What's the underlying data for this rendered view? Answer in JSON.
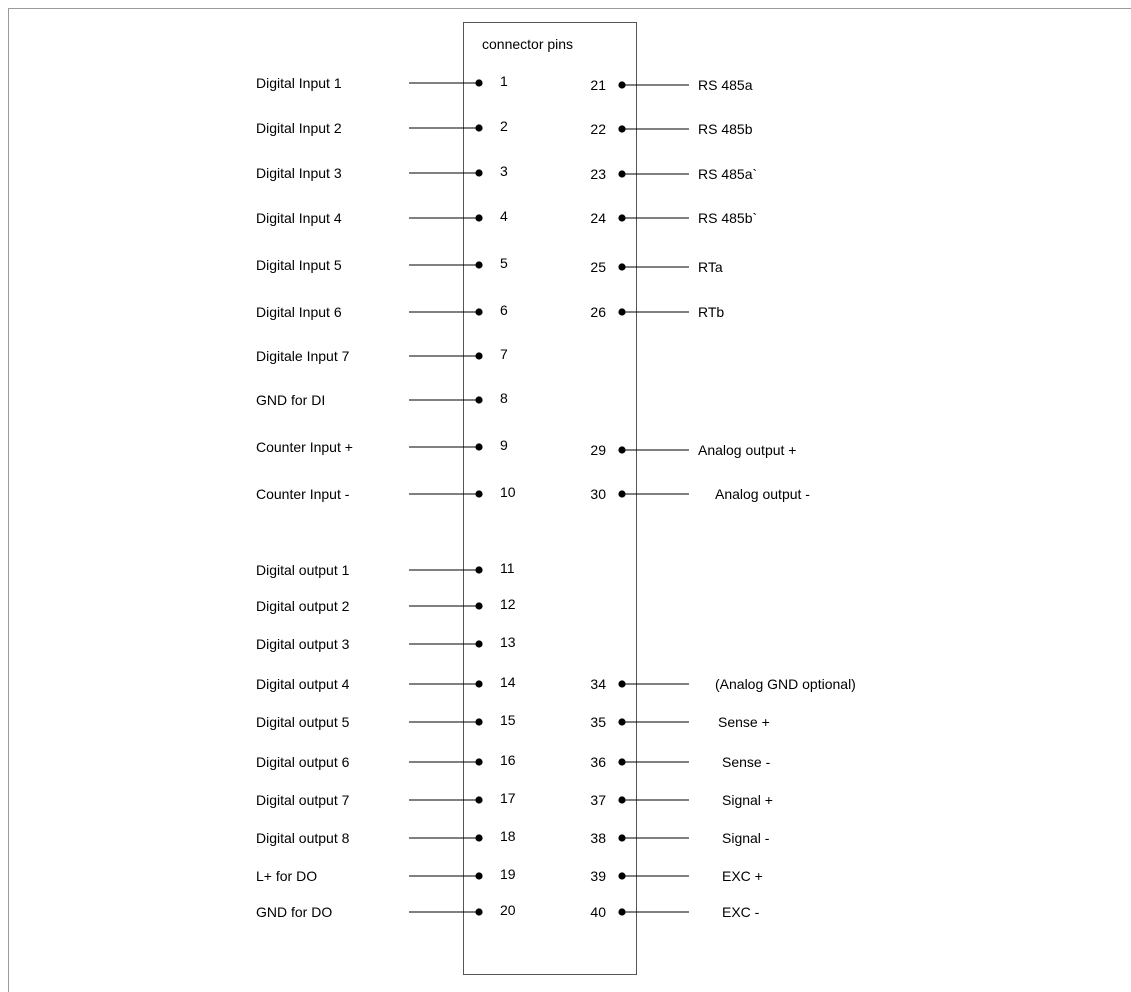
{
  "diagram": {
    "header": "connector pins",
    "left_pins": [
      {
        "pin": "1",
        "label": "Digital Input 1"
      },
      {
        "pin": "2",
        "label": "Digital Input 2"
      },
      {
        "pin": "3",
        "label": "Digital Input 3"
      },
      {
        "pin": "4",
        "label": "Digital Input 4"
      },
      {
        "pin": "5",
        "label": "Digital Input 5"
      },
      {
        "pin": "6",
        "label": "Digital Input 6"
      },
      {
        "pin": "7",
        "label": "Digitale Input 7"
      },
      {
        "pin": "8",
        "label": "GND for DI"
      },
      {
        "pin": "9",
        "label": "Counter Input +"
      },
      {
        "pin": "10",
        "label": "Counter Input -"
      },
      {
        "pin": "11",
        "label": "Digital output 1"
      },
      {
        "pin": "12",
        "label": "Digital output 2"
      },
      {
        "pin": "13",
        "label": "Digital output 3"
      },
      {
        "pin": "14",
        "label": "Digital output 4"
      },
      {
        "pin": "15",
        "label": "Digital output 5"
      },
      {
        "pin": "16",
        "label": "Digital output 6"
      },
      {
        "pin": "17",
        "label": "Digital output 7"
      },
      {
        "pin": "18",
        "label": "Digital output 8"
      },
      {
        "pin": "19",
        "label": "L+ for DO"
      },
      {
        "pin": "20",
        "label": "GND for DO"
      }
    ],
    "right_pins": [
      {
        "pin": "21",
        "label": "RS 485a"
      },
      {
        "pin": "22",
        "label": "RS 485b"
      },
      {
        "pin": "23",
        "label": "RS 485a`"
      },
      {
        "pin": "24",
        "label": "RS 485b`"
      },
      {
        "pin": "25",
        "label": "RTa"
      },
      {
        "pin": "26",
        "label": "RTb"
      },
      {
        "pin": "29",
        "label": "Analog output +"
      },
      {
        "pin": "30",
        "label": "Analog output -"
      },
      {
        "pin": "34",
        "label": "(Analog GND optional)"
      },
      {
        "pin": "35",
        "label": "Sense +"
      },
      {
        "pin": "36",
        "label": "Sense -"
      },
      {
        "pin": "37",
        "label": "Signal +"
      },
      {
        "pin": "38",
        "label": "Signal -"
      },
      {
        "pin": "39",
        "label": "EXC +"
      },
      {
        "pin": "40",
        "label": "EXC  -"
      }
    ]
  }
}
